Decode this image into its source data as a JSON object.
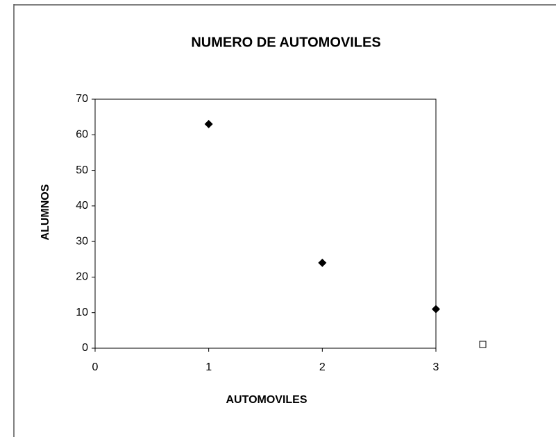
{
  "chart_data": {
    "type": "scatter",
    "title": "NUMERO DE AUTOMOVILES",
    "x_label": "AUTOMOVILES",
    "y_label": "ALUMNOS",
    "x": [
      1,
      2,
      3
    ],
    "values": [
      63,
      24,
      11
    ],
    "color": "#000000",
    "xlim": [
      0,
      3
    ],
    "xticks": [
      0,
      1,
      2,
      3
    ],
    "ylim": [
      0,
      70
    ],
    "yticks": [
      0,
      10,
      20,
      30,
      40,
      50,
      60,
      70
    ]
  }
}
